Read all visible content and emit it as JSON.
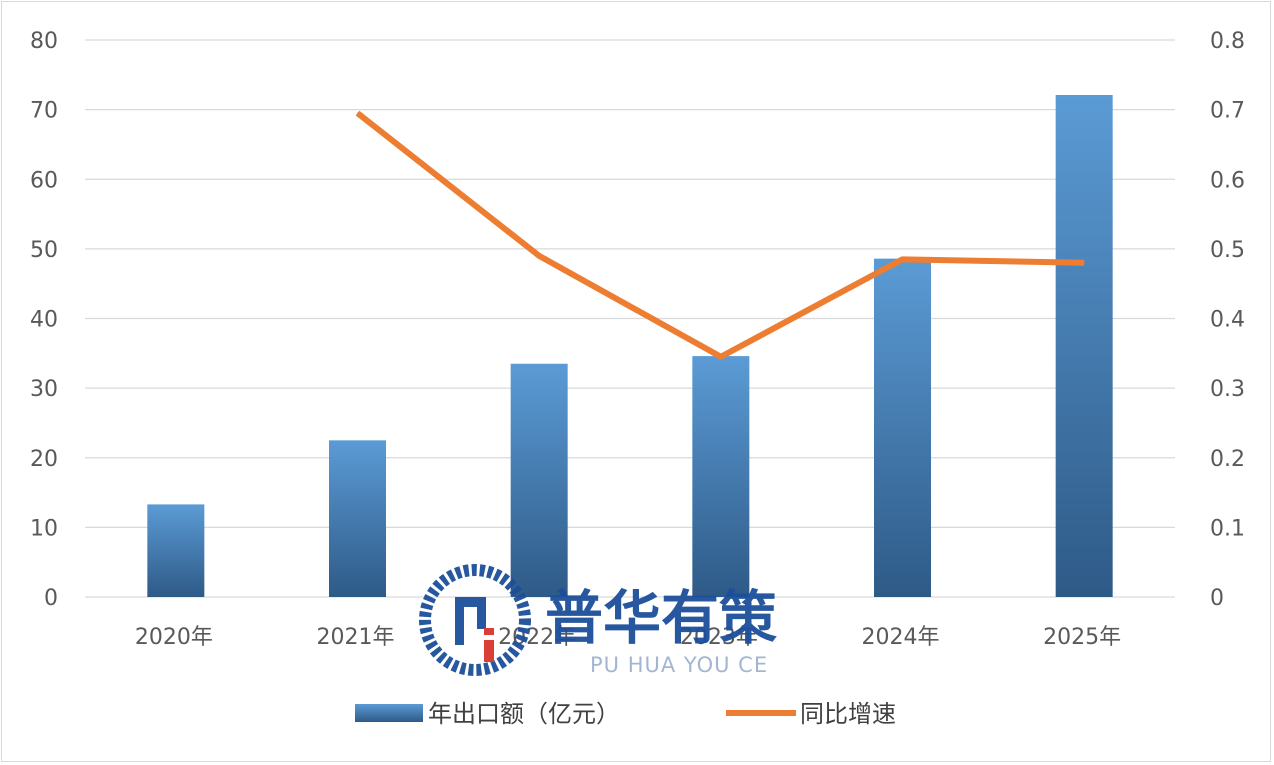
{
  "chart_data": {
    "type": "bar",
    "categories": [
      "2020年",
      "2021年",
      "2022年",
      "2023年",
      "2024年",
      "2025年"
    ],
    "series": [
      {
        "name": "年出口额（亿元）",
        "type": "bar",
        "axis": "left",
        "values": [
          13.3,
          22.5,
          33.5,
          34.6,
          48.6,
          72.1
        ]
      },
      {
        "name": "同比增速",
        "type": "line",
        "axis": "right",
        "values": [
          null,
          0.695,
          0.49,
          0.345,
          0.485,
          0.48
        ]
      }
    ],
    "y_left": {
      "lim": [
        0,
        80
      ],
      "ticks": [
        "0",
        "10",
        "20",
        "30",
        "40",
        "50",
        "60",
        "70",
        "80"
      ]
    },
    "y_right": {
      "lim": [
        0,
        0.8
      ],
      "ticks": [
        "0",
        "0.1",
        "0.2",
        "0.3",
        "0.4",
        "0.5",
        "0.6",
        "0.7",
        "0.8"
      ]
    },
    "grid": true,
    "legend": "bottom"
  },
  "colors": {
    "bar_top": "#5b9bd5",
    "bar_bottom": "#2e5a87",
    "line": "#ed7d31",
    "grid": "#d9d9d9"
  },
  "watermark": {
    "cn": "普华有策",
    "en": "PU HUA YOU CE"
  }
}
